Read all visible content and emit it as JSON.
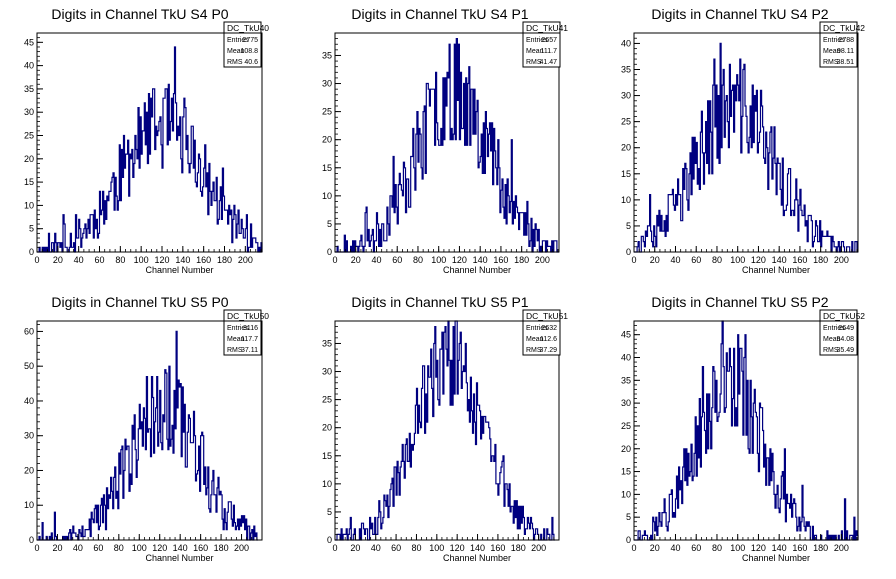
{
  "chart_data": [
    {
      "type": "histogram",
      "title": "Digits in Channel TkU S4 P0",
      "xlabel": "Channel Number",
      "xlim": [
        0,
        216
      ],
      "ylim": [
        0,
        47
      ],
      "xticks": [
        0,
        20,
        40,
        60,
        80,
        100,
        120,
        140,
        160,
        180,
        200
      ],
      "yticks": [
        0,
        5,
        10,
        15,
        20,
        25,
        30,
        35,
        40,
        45
      ],
      "stats": {
        "name": "DC_TkU40",
        "entries": "2775",
        "mean": "108.8",
        "rms": "40.6"
      },
      "shape": {
        "center": 120,
        "sigma": 40,
        "peak": 27,
        "seed": 11,
        "noise": 5,
        "bumps": [
          [
            132,
            44
          ]
        ]
      }
    },
    {
      "type": "histogram",
      "title": "Digits in Channel TkU S4 P1",
      "xlabel": "Channel Number",
      "xlim": [
        0,
        216
      ],
      "ylim": [
        0,
        39
      ],
      "xticks": [
        0,
        20,
        40,
        60,
        80,
        100,
        120,
        140,
        160,
        180,
        200
      ],
      "yticks": [
        0,
        5,
        10,
        15,
        20,
        25,
        30,
        35
      ],
      "stats": {
        "name": "DC_TkU41",
        "entries": "2657",
        "mean": "111.7",
        "rms": "41.47"
      },
      "shape": {
        "center": 115,
        "sigma": 36,
        "peak": 29,
        "seed": 23,
        "noise": 5,
        "bumps": [
          [
            110,
            37
          ]
        ]
      }
    },
    {
      "type": "histogram",
      "title": "Digits in Channel TkU S4 P2",
      "xlabel": "Channel Number",
      "xlim": [
        0,
        216
      ],
      "ylim": [
        0,
        42
      ],
      "xticks": [
        0,
        20,
        40,
        60,
        80,
        100,
        120,
        140,
        160,
        180,
        200
      ],
      "yticks": [
        0,
        5,
        10,
        15,
        20,
        25,
        30,
        35,
        40
      ],
      "stats": {
        "name": "DC_TkU42",
        "entries": "2788",
        "mean": "98.11",
        "rms": "38.51"
      },
      "shape": {
        "center": 98,
        "sigma": 38,
        "peak": 28,
        "seed": 37,
        "noise": 5,
        "bumps": [
          [
            83,
            40
          ]
        ]
      }
    },
    {
      "type": "histogram",
      "title": "Digits in Channel TkU S5 P0",
      "xlabel": "Channel Number",
      "xlim": [
        0,
        220
      ],
      "ylim": [
        0,
        63
      ],
      "xticks": [
        0,
        20,
        40,
        60,
        80,
        100,
        120,
        140,
        160,
        180,
        200
      ],
      "yticks": [
        0,
        10,
        20,
        30,
        40,
        50,
        60
      ],
      "stats": {
        "name": "DC_TkU50",
        "entries": "3116",
        "mean": "117.7",
        "rms": "37.11"
      },
      "shape": {
        "center": 125,
        "sigma": 35,
        "peak": 38,
        "seed": 53,
        "noise": 6,
        "bumps": [
          [
            136,
            60
          ]
        ]
      }
    },
    {
      "type": "histogram",
      "title": "Digits in Channel TkU S5 P1",
      "xlabel": "Channel Number",
      "xlim": [
        0,
        220
      ],
      "ylim": [
        0,
        39
      ],
      "xticks": [
        0,
        20,
        40,
        60,
        80,
        100,
        120,
        140,
        160,
        180,
        200
      ],
      "yticks": [
        0,
        5,
        10,
        15,
        20,
        25,
        30,
        35
      ],
      "stats": {
        "name": "DC_TkU51",
        "entries": "2632",
        "mean": "112.6",
        "rms": "37.29"
      },
      "shape": {
        "center": 112,
        "sigma": 34,
        "peak": 32,
        "seed": 71,
        "noise": 4,
        "bumps": [
          [
            108,
            38
          ]
        ]
      }
    },
    {
      "type": "histogram",
      "title": "Digits in Channel TkU S5 P2",
      "xlabel": "Channel Number",
      "xlim": [
        0,
        216
      ],
      "ylim": [
        0,
        48
      ],
      "xticks": [
        0,
        20,
        40,
        60,
        80,
        100,
        120,
        140,
        160,
        180,
        200
      ],
      "yticks": [
        0,
        5,
        10,
        15,
        20,
        25,
        30,
        35,
        40,
        45
      ],
      "stats": {
        "name": "DC_TkU52",
        "entries": "2649",
        "mean": "94.08",
        "rms": "35.49"
      },
      "shape": {
        "center": 92,
        "sigma": 32,
        "peak": 34,
        "seed": 97,
        "noise": 5,
        "bumps": [
          [
            100,
            45
          ]
        ]
      }
    }
  ],
  "stats_labels": {
    "entries": "Entries",
    "mean": "Mean",
    "rms": "RMS"
  },
  "colors": {
    "line": "#000080",
    "axis": "#000000",
    "background": "#ffffff"
  }
}
